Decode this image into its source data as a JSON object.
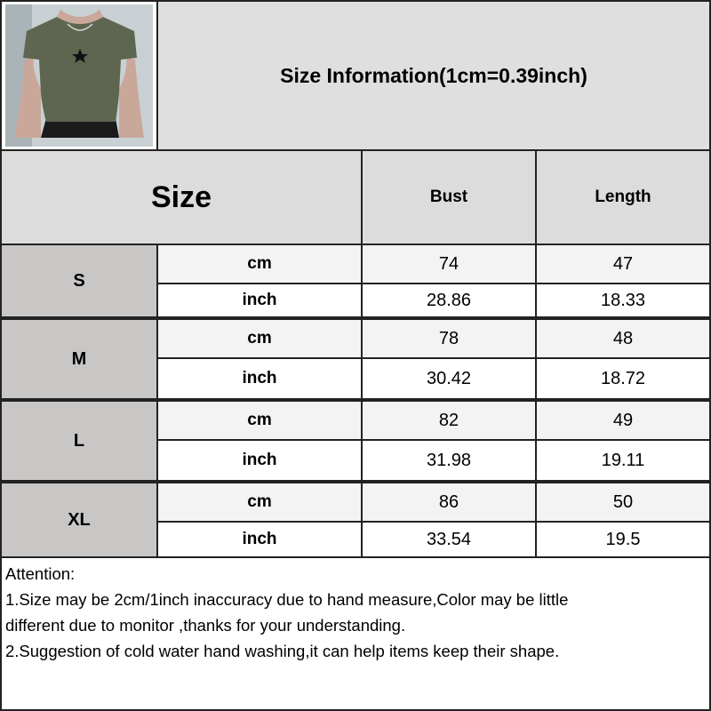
{
  "title": "Size Information(1cm=0.39inch)",
  "product_image": {
    "description_icon": "green-tshirt-photo",
    "shirt_color": "#5e6650"
  },
  "table": {
    "headers": {
      "size": "Size",
      "bust": "Bust",
      "length": "Length"
    },
    "rows": [
      {
        "size": "S",
        "cm": {
          "unit": "cm",
          "bust": "74",
          "length": "47"
        },
        "inch": {
          "unit": "inch",
          "bust": "28.86",
          "length": "18.33"
        }
      },
      {
        "size": "M",
        "cm": {
          "unit": "cm",
          "bust": "78",
          "length": "48"
        },
        "inch": {
          "unit": "inch",
          "bust": "30.42",
          "length": "18.72"
        }
      },
      {
        "size": "L",
        "cm": {
          "unit": "cm",
          "bust": "82",
          "length": "49"
        },
        "inch": {
          "unit": "inch",
          "bust": "31.98",
          "length": "19.11"
        }
      },
      {
        "size": "XL",
        "cm": {
          "unit": "cm",
          "bust": "86",
          "length": "50"
        },
        "inch": {
          "unit": "inch",
          "bust": "33.54",
          "length": "19.5"
        }
      }
    ]
  },
  "notes": {
    "heading": "Attention:",
    "lines": [
      "1.Size may be 2cm/1inch inaccuracy due to hand measure,Color may be little",
      "different due to monitor ,thanks for your understanding.",
      "2.Suggestion of cold water hand washing,it can help items keep their shape."
    ]
  }
}
